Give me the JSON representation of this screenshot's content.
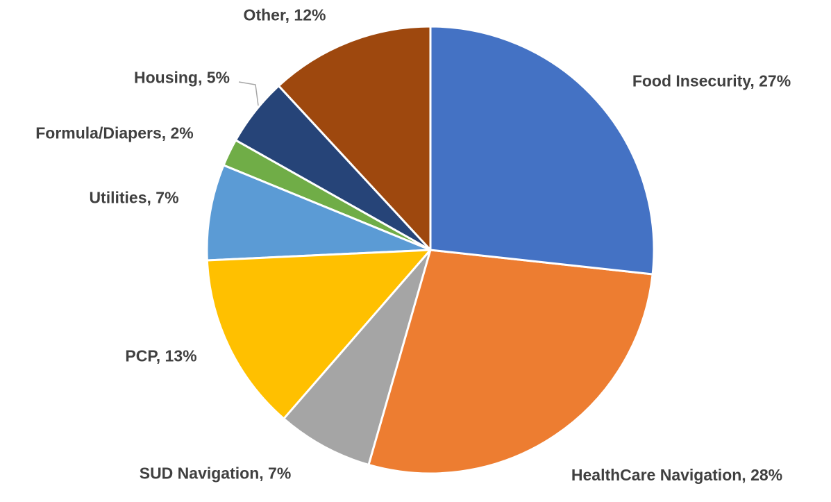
{
  "chart_data": {
    "type": "pie",
    "values": [
      27,
      28,
      7,
      13,
      7,
      2,
      5,
      12
    ],
    "value_labels": [
      "Food Insecurity, 27%",
      "HealthCare Navigation, 28%",
      "SUD Navigation, 7%",
      "PCP, 13%",
      "Utilities, 7%",
      "Formula/Diapers, 2%",
      "Housing, 5%",
      "Other, 12%"
    ],
    "colors": [
      "#4472c4",
      "#ed7d31",
      "#a5a5a5",
      "#ffc000",
      "#5b9bd5",
      "#70ad47",
      "#264478",
      "#9e480e"
    ]
  }
}
